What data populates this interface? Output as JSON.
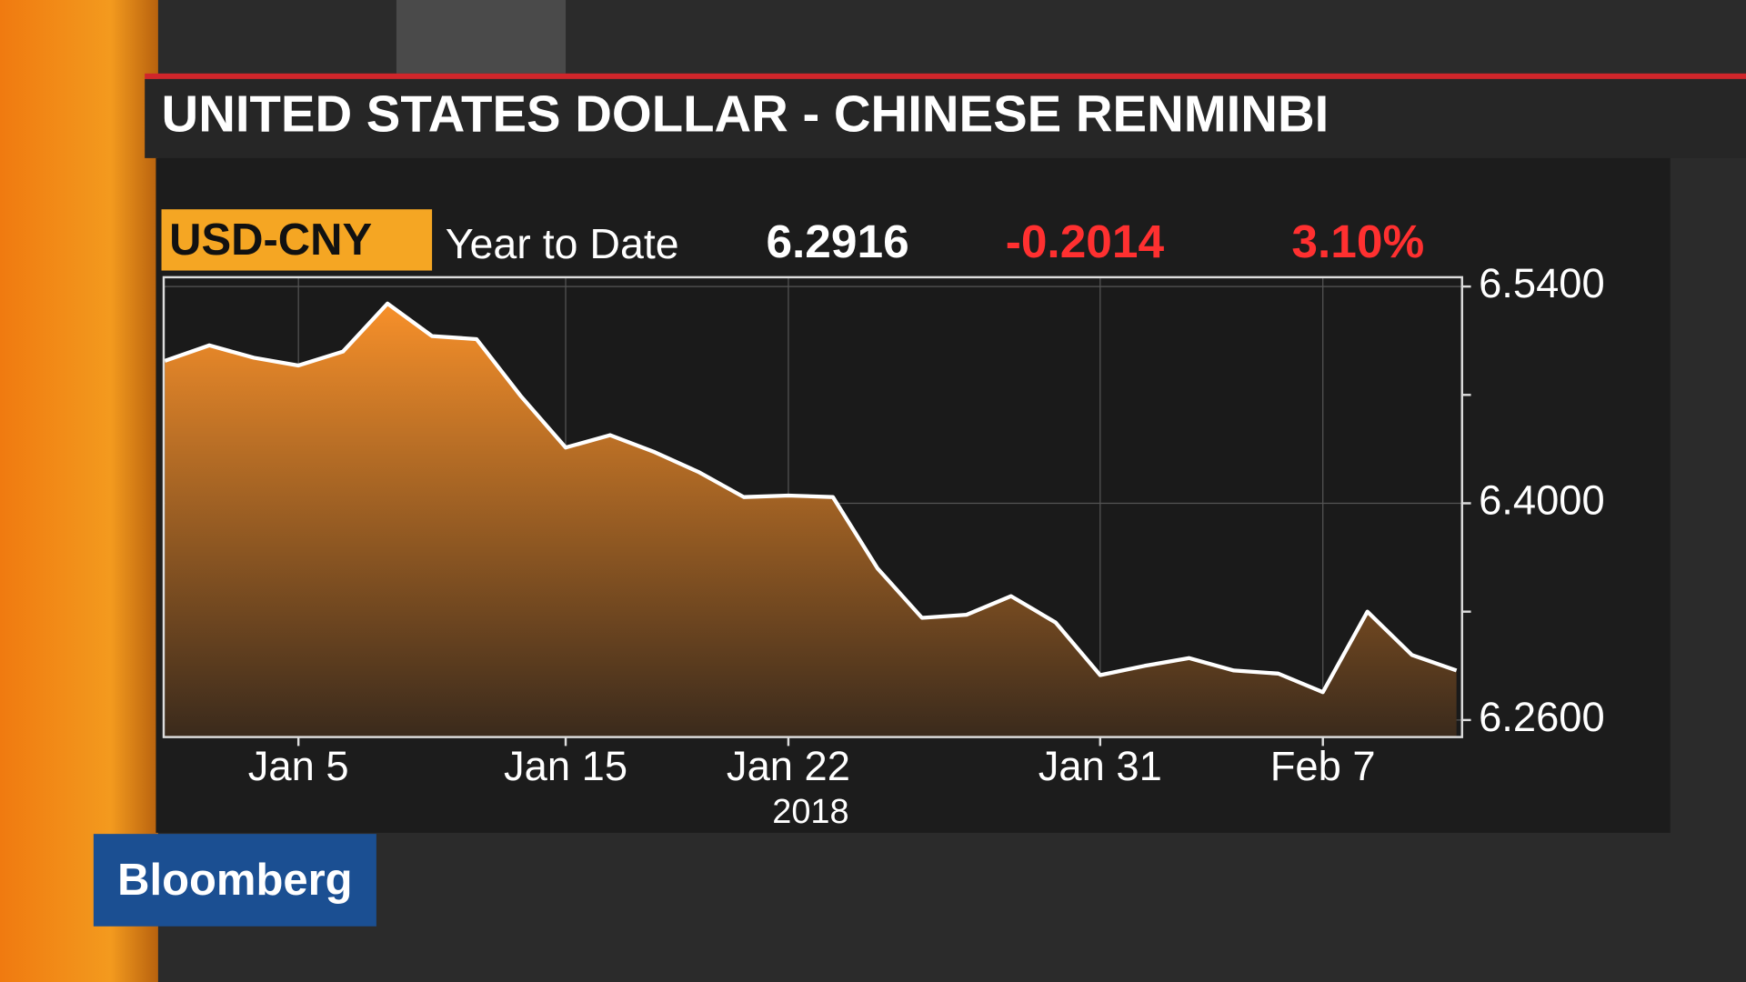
{
  "chart_data": {
    "type": "area",
    "title": "UNITED STATES DOLLAR - CHINESE RENMINBI",
    "brand": "Bloomberg",
    "header": {
      "ticker": "USD-CNY",
      "period": "Year to Date",
      "last": "6.2916",
      "change": "-0.2014",
      "change_pct": "3.10%"
    },
    "x": [
      "2018-01-02",
      "2018-01-03",
      "2018-01-04",
      "2018-01-05",
      "2018-01-08",
      "2018-01-09",
      "2018-01-10",
      "2018-01-11",
      "2018-01-12",
      "2018-01-15",
      "2018-01-16",
      "2018-01-17",
      "2018-01-18",
      "2018-01-19",
      "2018-01-22",
      "2018-01-23",
      "2018-01-24",
      "2018-01-25",
      "2018-01-26",
      "2018-01-29",
      "2018-01-30",
      "2018-01-31",
      "2018-02-01",
      "2018-02-02",
      "2018-02-05",
      "2018-02-06",
      "2018-02-07",
      "2018-02-08",
      "2018-02-09",
      "2018-02-12"
    ],
    "x_year_label": "2018",
    "series": [
      {
        "name": "USD-CNY",
        "color": "#f7902a",
        "values": [
          6.492,
          6.502,
          6.494,
          6.489,
          6.498,
          6.529,
          6.508,
          6.506,
          6.469,
          6.436,
          6.444,
          6.433,
          6.42,
          6.404,
          6.405,
          6.404,
          6.358,
          6.326,
          6.328,
          6.34,
          6.323,
          6.289,
          6.295,
          6.3,
          6.292,
          6.29,
          6.278,
          6.33,
          6.302,
          6.292
        ]
      }
    ],
    "xticks": [
      {
        "value": "2018-01-05",
        "label": "Jan 5"
      },
      {
        "value": "2018-01-15",
        "label": "Jan 15"
      },
      {
        "value": "2018-01-22",
        "label": "Jan 22"
      },
      {
        "value": "2018-01-31",
        "label": "Jan 31"
      },
      {
        "value": "2018-02-07",
        "label": "Feb 7"
      }
    ],
    "ylim": [
      6.249,
      6.546
    ],
    "yticks": [
      {
        "value": 6.26,
        "label": "6.2600"
      },
      {
        "value": 6.4,
        "label": "6.4000"
      },
      {
        "value": 6.54,
        "label": "6.5400"
      }
    ],
    "minor_yticks": [
      6.33,
      6.47
    ],
    "grid": true
  }
}
